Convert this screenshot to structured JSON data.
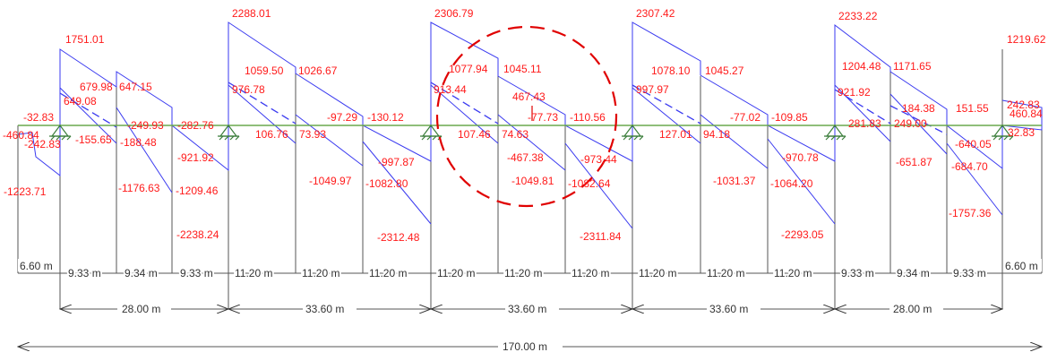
{
  "colors": {
    "shear_line": "#3a3af0",
    "value_label": "#ff1a1a",
    "beam": "#6aa84f",
    "support": "#3a7d3a",
    "dimension": "#333333",
    "highlight": "#e00000"
  },
  "shear_labels": [
    "1751.01",
    "2288.01",
    "2306.79",
    "2307.42",
    "2233.22",
    "679.98",
    "647.15",
    "649.08",
    "1059.50",
    "1026.67",
    "976.78",
    "1077.94",
    "1045.11",
    "913.44",
    "467.43",
    "1078.10",
    "1045.27",
    "997.97",
    "1204.48",
    "1171.65",
    "921.92",
    "184.38",
    "151.55",
    "1219.62",
    "242.83",
    "460.84",
    "-32.83",
    "-460.84",
    "-242.83",
    "-249.93",
    "-282.76",
    "-155.65",
    "-188.48",
    "-97.29",
    "-130.12",
    "106.76",
    "73.93",
    "-77.73",
    "-110.56",
    "107.46",
    "74.63",
    "-77.02",
    "-109.85",
    "127.01",
    "94.18",
    "281.83",
    "249.00",
    "-640.05",
    "32.83",
    "-921.92",
    "-997.87",
    "-973.44",
    "-970.78",
    "-467.38",
    "-651.87",
    "-684.70",
    "-1223.71",
    "-1176.63",
    "-1209.46",
    "-1049.97",
    "-1082.80",
    "-1049.81",
    "-1082.64",
    "-1031.37",
    "-1064.20",
    "-1757.36",
    "-2238.24",
    "-2312.48",
    "-2311.84",
    "-2293.05"
  ],
  "span_dimensions": [
    "6.60 m",
    "9.33 m",
    "9.34 m",
    "9.33 m",
    "11.20 m",
    "11.20 m",
    "11.20 m",
    "11.20 m",
    "11.20 m",
    "11.20 m",
    "11.20 m",
    "11.20 m",
    "11.20 m",
    "9.33 m",
    "9.34 m",
    "9.33 m",
    "6.60 m"
  ],
  "group_dimensions": [
    "28.00 m",
    "33.60 m",
    "33.60 m",
    "33.60 m",
    "28.00 m"
  ],
  "total_dimension": "170.00 m"
}
